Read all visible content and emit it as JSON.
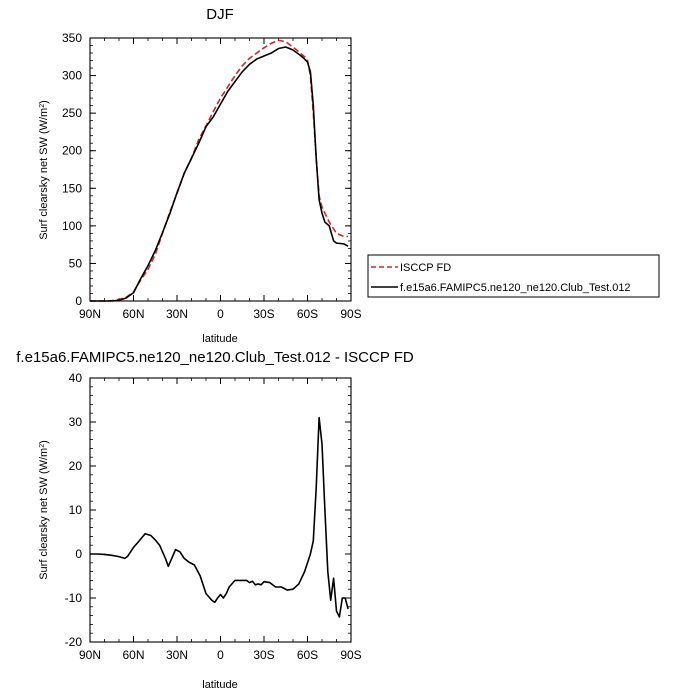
{
  "chart_data": [
    {
      "type": "line",
      "title": "DJF",
      "xlabel": "latitude",
      "ylabel": "Surf clearsky net SW (W/m",
      "ylabel_sup": "2",
      "ylabel_tail": ")",
      "xlim": [
        90,
        -90
      ],
      "ylim": [
        0,
        350
      ],
      "xticks": [
        {
          "value": 90,
          "label": "90N"
        },
        {
          "value": 60,
          "label": "60N"
        },
        {
          "value": 30,
          "label": "30N"
        },
        {
          "value": 0,
          "label": "0"
        },
        {
          "value": -30,
          "label": "30S"
        },
        {
          "value": -60,
          "label": "60S"
        },
        {
          "value": -90,
          "label": "90S"
        }
      ],
      "yticks": [
        0,
        50,
        100,
        150,
        200,
        250,
        300,
        350
      ],
      "series": [
        {
          "name": "ISCCP FD",
          "color": "#dd2222",
          "dash": "dashed",
          "x": [
            90,
            85,
            80,
            75,
            70,
            65,
            60,
            55,
            50,
            45,
            40,
            35,
            30,
            25,
            20,
            15,
            10,
            5,
            0,
            -5,
            -10,
            -15,
            -20,
            -25,
            -30,
            -35,
            -40,
            -45,
            -50,
            -55,
            -58,
            -60,
            -62,
            -64,
            -66,
            -68,
            -70,
            -72,
            -75,
            -80,
            -85,
            -88
          ],
          "values": [
            0,
            0,
            0,
            0.5,
            2,
            5,
            12,
            28,
            42,
            62,
            90,
            118,
            143,
            170,
            190,
            215,
            233,
            252,
            270,
            285,
            300,
            313,
            323,
            330,
            337,
            343,
            347,
            345,
            338,
            330,
            325,
            320,
            300,
            250,
            190,
            140,
            125,
            117,
            105,
            90,
            86,
            86
          ]
        },
        {
          "name": "f.e15a6.FAMIPC5.ne120_ne120.Club_Test.012",
          "color": "#000000",
          "dash": "solid",
          "x": [
            90,
            85,
            80,
            75,
            70,
            65,
            60,
            55,
            50,
            45,
            40,
            35,
            30,
            25,
            20,
            15,
            10,
            5,
            0,
            -5,
            -10,
            -15,
            -20,
            -25,
            -30,
            -35,
            -40,
            -45,
            -50,
            -55,
            -58,
            -60,
            -62,
            -64,
            -66,
            -68,
            -70,
            -72,
            -75,
            -78,
            -80,
            -85,
            -88
          ],
          "values": [
            0,
            0,
            0,
            0,
            1,
            4,
            11,
            30,
            47,
            67,
            91,
            116,
            144,
            170,
            190,
            210,
            232,
            245,
            262,
            279,
            292,
            305,
            315,
            322,
            326,
            330,
            336,
            338,
            334,
            327,
            322,
            318,
            305,
            260,
            190,
            135,
            117,
            105,
            100,
            80,
            77,
            76,
            73
          ]
        }
      ],
      "legend": "right"
    },
    {
      "type": "line",
      "title": "f.e15a6.FAMIPC5.ne120_ne120.Club_Test.012 - ISCCP FD",
      "xlabel": "latitude",
      "ylabel": "Surf clearsky net SW (W/m",
      "ylabel_sup": "2",
      "ylabel_tail": ")",
      "xlim": [
        90,
        -90
      ],
      "ylim": [
        -20,
        40
      ],
      "xticks": [
        {
          "value": 90,
          "label": "90N"
        },
        {
          "value": 60,
          "label": "60N"
        },
        {
          "value": 30,
          "label": "30N"
        },
        {
          "value": 0,
          "label": "0"
        },
        {
          "value": -30,
          "label": "30S"
        },
        {
          "value": -60,
          "label": "60S"
        },
        {
          "value": -90,
          "label": "90S"
        }
      ],
      "yticks": [
        -20,
        -10,
        0,
        10,
        20,
        30,
        40
      ],
      "series": [
        {
          "name": "f.e15a6.FAMIPC5.ne120_ne120.Club_Test.012 - ISCCP FD",
          "color": "#000000",
          "dash": "solid",
          "x": [
            90,
            85,
            80,
            75,
            70,
            66,
            64,
            60,
            56,
            52,
            48,
            45,
            42,
            40,
            38,
            36,
            34,
            31,
            28,
            25,
            22,
            18,
            14,
            10,
            6,
            4,
            2,
            0,
            -2,
            -4,
            -6,
            -10,
            -14,
            -18,
            -20,
            -22,
            -24,
            -26,
            -28,
            -30,
            -34,
            -38,
            -42,
            -46,
            -50,
            -54,
            -58,
            -62,
            -64,
            -66,
            -68,
            -70,
            -72,
            -74,
            -76,
            -78,
            -80,
            -82,
            -84,
            -86,
            -88
          ],
          "values": [
            0,
            0,
            -0.1,
            -0.3,
            -0.6,
            -1,
            -0.5,
            1.5,
            3,
            4.6,
            4.2,
            3.2,
            2,
            0.5,
            -1,
            -2.8,
            -1.3,
            1,
            0.5,
            -1,
            -1.8,
            -2.5,
            -5,
            -9,
            -10.5,
            -11,
            -10,
            -9.2,
            -10,
            -9,
            -7.5,
            -6,
            -6,
            -6,
            -6.5,
            -6.2,
            -7,
            -6.8,
            -7,
            -6.3,
            -6.5,
            -7.5,
            -7.5,
            -8.2,
            -8,
            -6.8,
            -4,
            0,
            3,
            15,
            31,
            25,
            10,
            -4,
            -10.5,
            -5.5,
            -13,
            -14.3,
            -10,
            -10,
            -12.5
          ]
        }
      ]
    }
  ]
}
